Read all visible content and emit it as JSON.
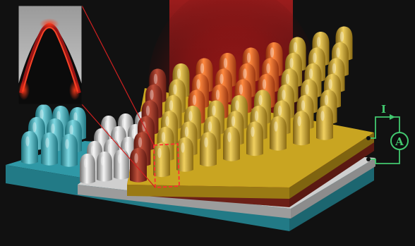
{
  "colors": {
    "background": "#111111",
    "gold": "#c9a521",
    "red_layer": "#8f2d22",
    "silver": "#b8b8b8",
    "cyan": "#3aaab8",
    "light_beam": "#b31616",
    "circuit": "#42c86f"
  },
  "circuit": {
    "current_label": "I",
    "ammeter_label": "A"
  },
  "icons": {
    "ammeter": "circle-with-letter-a"
  },
  "layers": [
    "cyan-layer",
    "silver-layer",
    "red-layer",
    "gold-layer"
  ]
}
